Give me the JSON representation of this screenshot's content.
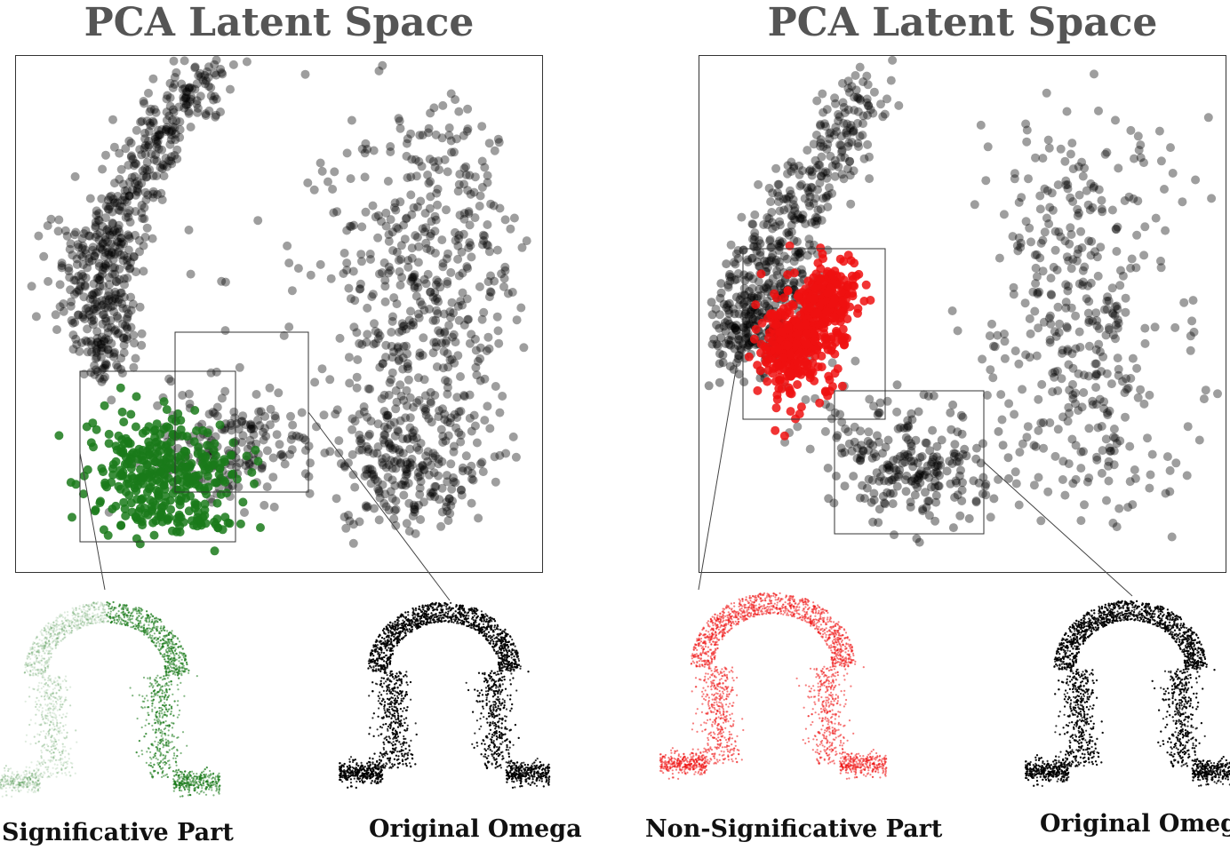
{
  "panels": [
    {
      "title": "PCA Latent Space",
      "highlight_color": "#1a7a1a",
      "captions": [
        "Significative Part",
        "Original Omega"
      ],
      "icons": [
        "omega-green-pointcloud-icon",
        "omega-black-pointcloud-icon"
      ]
    },
    {
      "title": "PCA Latent Space",
      "highlight_color": "#ee1111",
      "captions": [
        "Non-Significative Part",
        "Original Omega"
      ],
      "icons": [
        "omega-red-pointcloud-icon",
        "omega-black-pointcloud-icon"
      ]
    }
  ],
  "colors": {
    "points": "#000000",
    "frame": "#333333"
  }
}
